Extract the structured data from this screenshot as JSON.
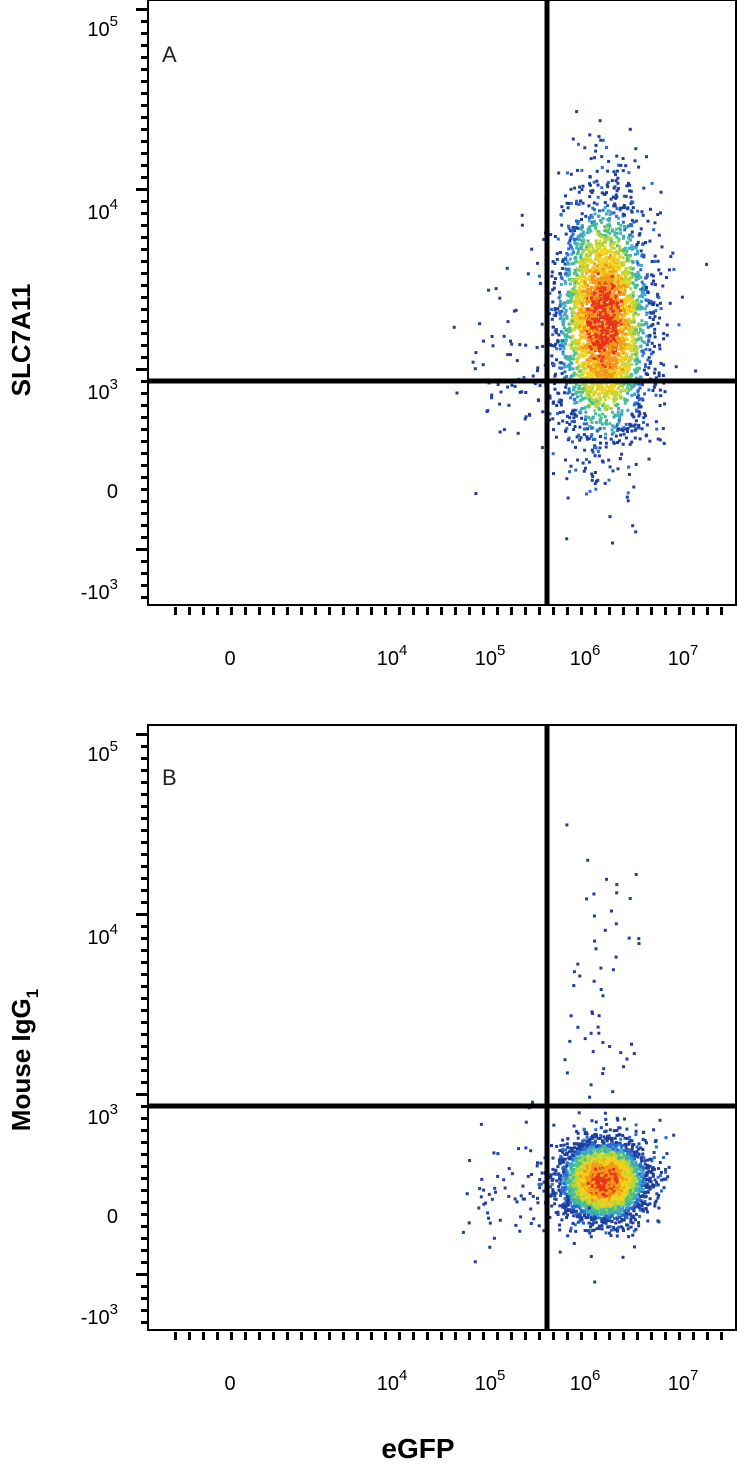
{
  "figure": {
    "xlabel": "eGFP",
    "colors": {
      "axis": "#000000",
      "gate": "#000000",
      "density": [
        "#1f3f9f",
        "#2a6bd1",
        "#3fa7c8",
        "#48c18a",
        "#b7d63a",
        "#f3d21b",
        "#f39a1b",
        "#e8321b"
      ]
    }
  },
  "chart_data": [
    {
      "type": "scatter",
      "panel_label": "A",
      "ylabel": "SLC7A11",
      "xlabel": "eGFP",
      "x_ticks": [
        {
          "base": "0",
          "exp": "",
          "value": 0
        },
        {
          "base": "10",
          "exp": "4",
          "value": 10000
        },
        {
          "base": "10",
          "exp": "5",
          "value": 100000
        },
        {
          "base": "10",
          "exp": "6",
          "value": 1000000
        },
        {
          "base": "10",
          "exp": "7",
          "value": 10000000
        }
      ],
      "y_ticks": [
        {
          "base": "10",
          "exp": "5",
          "value": 100000
        },
        {
          "base": "10",
          "exp": "4",
          "value": 10000
        },
        {
          "base": "10",
          "exp": "3",
          "value": 1000
        },
        {
          "base": "0",
          "exp": "",
          "value": 0
        },
        {
          "base": "-10",
          "exp": "3",
          "value": -1000
        }
      ],
      "scale": "biexponential",
      "xlim": [
        -40000,
        20000000
      ],
      "ylim": [
        -1300,
        150000
      ],
      "quadrant_gate": {
        "x": 400000,
        "y": 1000
      },
      "populations": [
        {
          "name": "eGFP+ cells",
          "x_center": 1500000,
          "y_center": 2300,
          "spread": "wide vertical",
          "density": "high"
        },
        {
          "name": "eGFP- minor events",
          "x_center": 150000,
          "y_center": 1200,
          "spread": "sparse",
          "density": "low"
        }
      ],
      "grid": false
    },
    {
      "type": "scatter",
      "panel_label": "B",
      "ylabel": "Mouse IgG",
      "ylabel_sub": "1",
      "xlabel": "eGFP",
      "x_ticks": [
        {
          "base": "0",
          "exp": "",
          "value": 0
        },
        {
          "base": "10",
          "exp": "4",
          "value": 10000
        },
        {
          "base": "10",
          "exp": "5",
          "value": 100000
        },
        {
          "base": "10",
          "exp": "6",
          "value": 1000000
        },
        {
          "base": "10",
          "exp": "7",
          "value": 10000000
        }
      ],
      "y_ticks": [
        {
          "base": "10",
          "exp": "5",
          "value": 100000
        },
        {
          "base": "10",
          "exp": "4",
          "value": 10000
        },
        {
          "base": "10",
          "exp": "3",
          "value": 1000
        },
        {
          "base": "0",
          "exp": "",
          "value": 0
        },
        {
          "base": "-10",
          "exp": "3",
          "value": -1000
        }
      ],
      "scale": "biexponential",
      "xlim": [
        -40000,
        20000000
      ],
      "ylim": [
        -1300,
        150000
      ],
      "quadrant_gate": {
        "x": 400000,
        "y": 1000
      },
      "populations": [
        {
          "name": "eGFP+ cells",
          "x_center": 1500000,
          "y_center": 300,
          "spread": "compact",
          "density": "high"
        },
        {
          "name": "eGFP+ sparse tail",
          "x_center": 1500000,
          "y_center": 5000,
          "spread": "sparse vertical",
          "density": "low"
        },
        {
          "name": "eGFP- minor events",
          "x_center": 150000,
          "y_center": 300,
          "spread": "sparse",
          "density": "low"
        }
      ],
      "grid": false
    }
  ]
}
